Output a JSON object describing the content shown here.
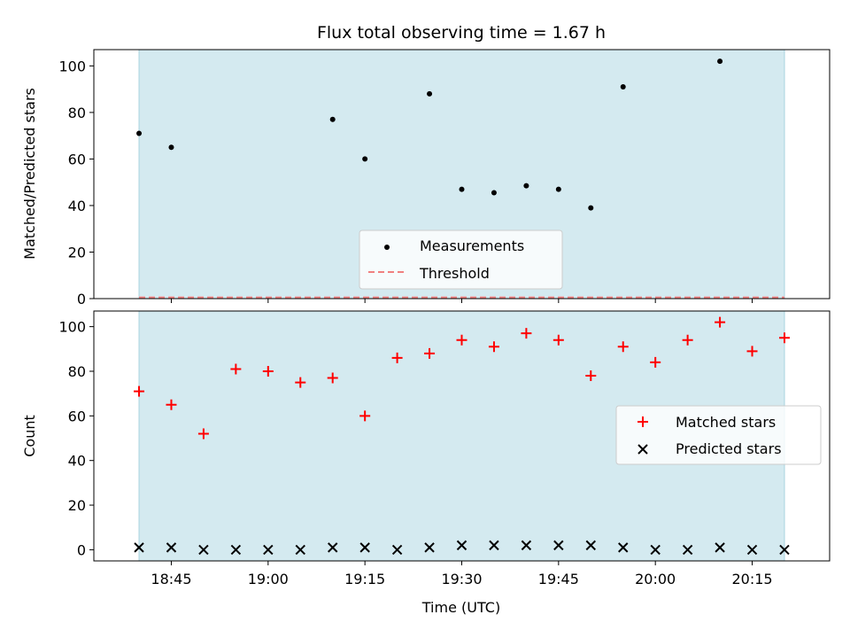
{
  "chart_data": {
    "title": "Flux total observing time = 1.67 h",
    "xlabel": "Time (UTC)",
    "x_ticks": [
      "18:45",
      "19:00",
      "19:15",
      "19:30",
      "19:45",
      "20:00",
      "20:15"
    ],
    "shaded_span": {
      "start": "18:40",
      "end": "20:20",
      "color": "#d4eaf0"
    },
    "panels": [
      {
        "type": "scatter",
        "ylabel": "Matched/Predicted stars",
        "ylim": [
          0,
          107
        ],
        "y_ticks": [
          0,
          20,
          40,
          60,
          80,
          100
        ],
        "series": [
          {
            "name": "Measurements",
            "marker": "dot",
            "color": "#000000",
            "points": [
              {
                "x": "18:40",
                "y": 71
              },
              {
                "x": "18:45",
                "y": 65
              },
              {
                "x": "19:10",
                "y": 77
              },
              {
                "x": "19:15",
                "y": 60
              },
              {
                "x": "19:25",
                "y": 88
              },
              {
                "x": "19:30",
                "y": 47
              },
              {
                "x": "19:35",
                "y": 45.5
              },
              {
                "x": "19:40",
                "y": 48.5
              },
              {
                "x": "19:45",
                "y": 47
              },
              {
                "x": "19:50",
                "y": 39
              },
              {
                "x": "19:55",
                "y": 91
              },
              {
                "x": "20:10",
                "y": 102
              }
            ]
          }
        ],
        "threshold": {
          "name": "Threshold",
          "y": 0.5,
          "color": "#f08080"
        },
        "legend": {
          "placement": "lower center"
        }
      },
      {
        "type": "scatter",
        "ylabel": "Count",
        "ylim": [
          -5,
          107
        ],
        "y_ticks": [
          0,
          20,
          40,
          60,
          80,
          100
        ],
        "x": [
          "18:40",
          "18:45",
          "18:50",
          "18:55",
          "19:00",
          "19:05",
          "19:10",
          "19:15",
          "19:20",
          "19:25",
          "19:30",
          "19:35",
          "19:40",
          "19:45",
          "19:50",
          "19:55",
          "20:00",
          "20:05",
          "20:10",
          "20:15",
          "20:20"
        ],
        "series": [
          {
            "name": "Matched stars",
            "marker": "plus",
            "color": "#ff0000",
            "values": [
              71,
              65,
              52,
              81,
              80,
              75,
              77,
              60,
              86,
              88,
              94,
              91,
              97,
              94,
              78,
              91,
              84,
              94,
              102,
              89,
              95
            ]
          },
          {
            "name": "Predicted stars",
            "marker": "x",
            "color": "#000000",
            "values": [
              1,
              1,
              0,
              0,
              0,
              0,
              1,
              1,
              0,
              1,
              2,
              2,
              2,
              2,
              2,
              1,
              0,
              0,
              1,
              0,
              0
            ]
          }
        ],
        "legend": {
          "placement": "center right"
        }
      }
    ]
  }
}
